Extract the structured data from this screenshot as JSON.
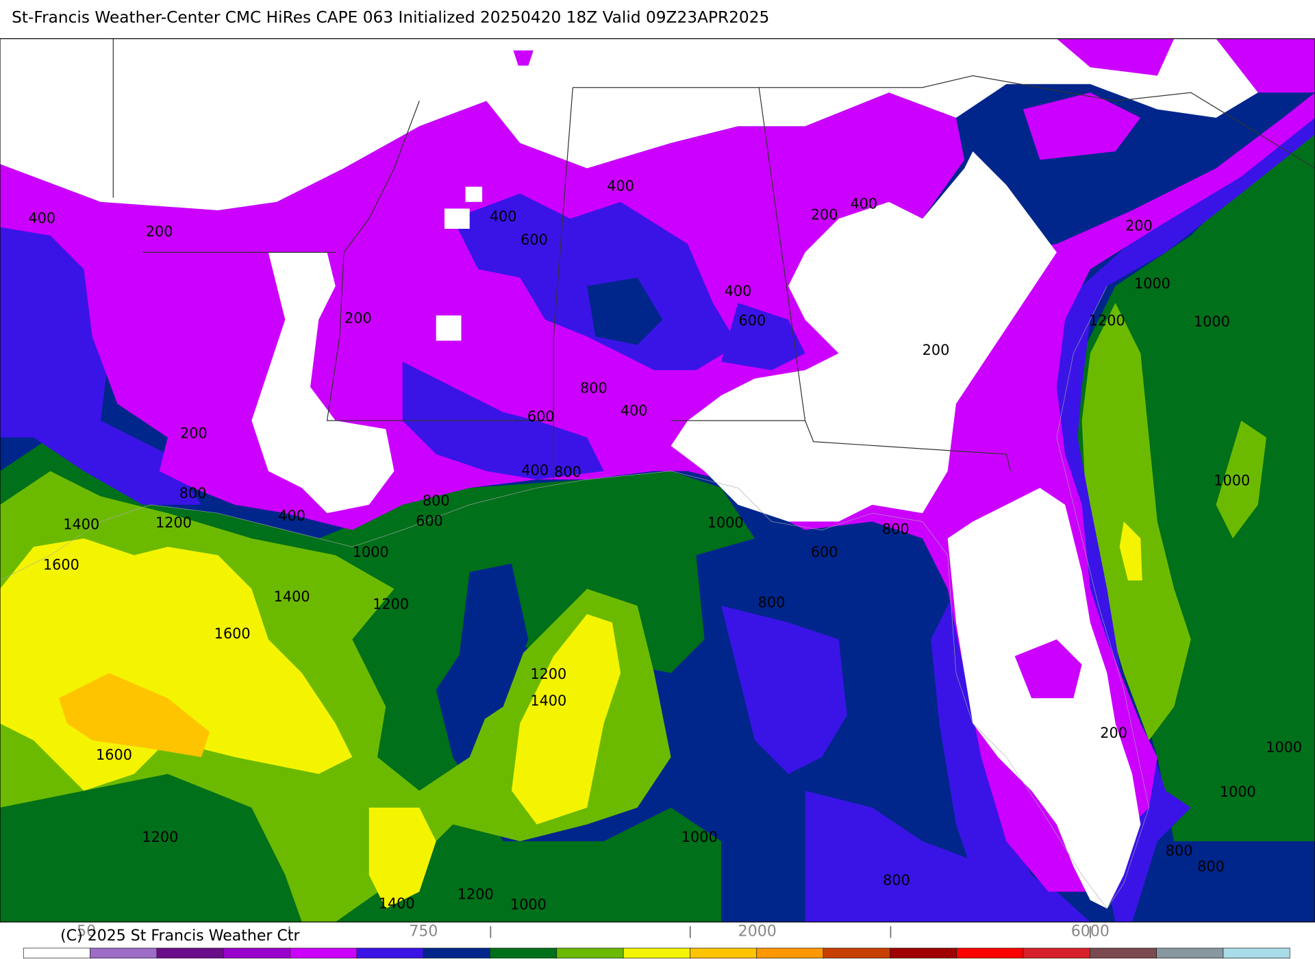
{
  "header": {
    "title": "St-Francis Weather-Center CMC HiRes CAPE  063 Initialized 20250420 18Z Valid 09Z23APR2025"
  },
  "map": {
    "contour_labels": [
      "400",
      "200",
      "400",
      "600",
      "400",
      "200",
      "400",
      "200",
      "1000",
      "400",
      "600",
      "200",
      "1200",
      "1000",
      "200",
      "800",
      "400",
      "600",
      "200",
      "400",
      "800",
      "800",
      "800",
      "1000",
      "1400",
      "1200",
      "400",
      "600",
      "1000",
      "800",
      "600",
      "1000",
      "1600",
      "1400",
      "1200",
      "800",
      "1600",
      "1200",
      "1400",
      "200",
      "1600",
      "1000",
      "1000",
      "1200",
      "1000",
      "800",
      "800",
      "800",
      "1200",
      "1000",
      "1400"
    ]
  },
  "colorbar": {
    "colors": [
      "#ffffff",
      "#9e6cc8",
      "#6a0d8a",
      "#9900cc",
      "#cc00ff",
      "#3a14e6",
      "#00268c",
      "#00701a",
      "#6cba00",
      "#f4f400",
      "#ffc400",
      "#ff9800",
      "#c84000",
      "#a00000",
      "#ff0000",
      "#d8202a",
      "#7a4a50",
      "#8898a0",
      "#a8dce8"
    ],
    "labels": [
      "50",
      "750",
      "2000",
      "6000"
    ]
  },
  "footer": {
    "copyright": "(C) 2025 St Francis Weather Ctr"
  }
}
